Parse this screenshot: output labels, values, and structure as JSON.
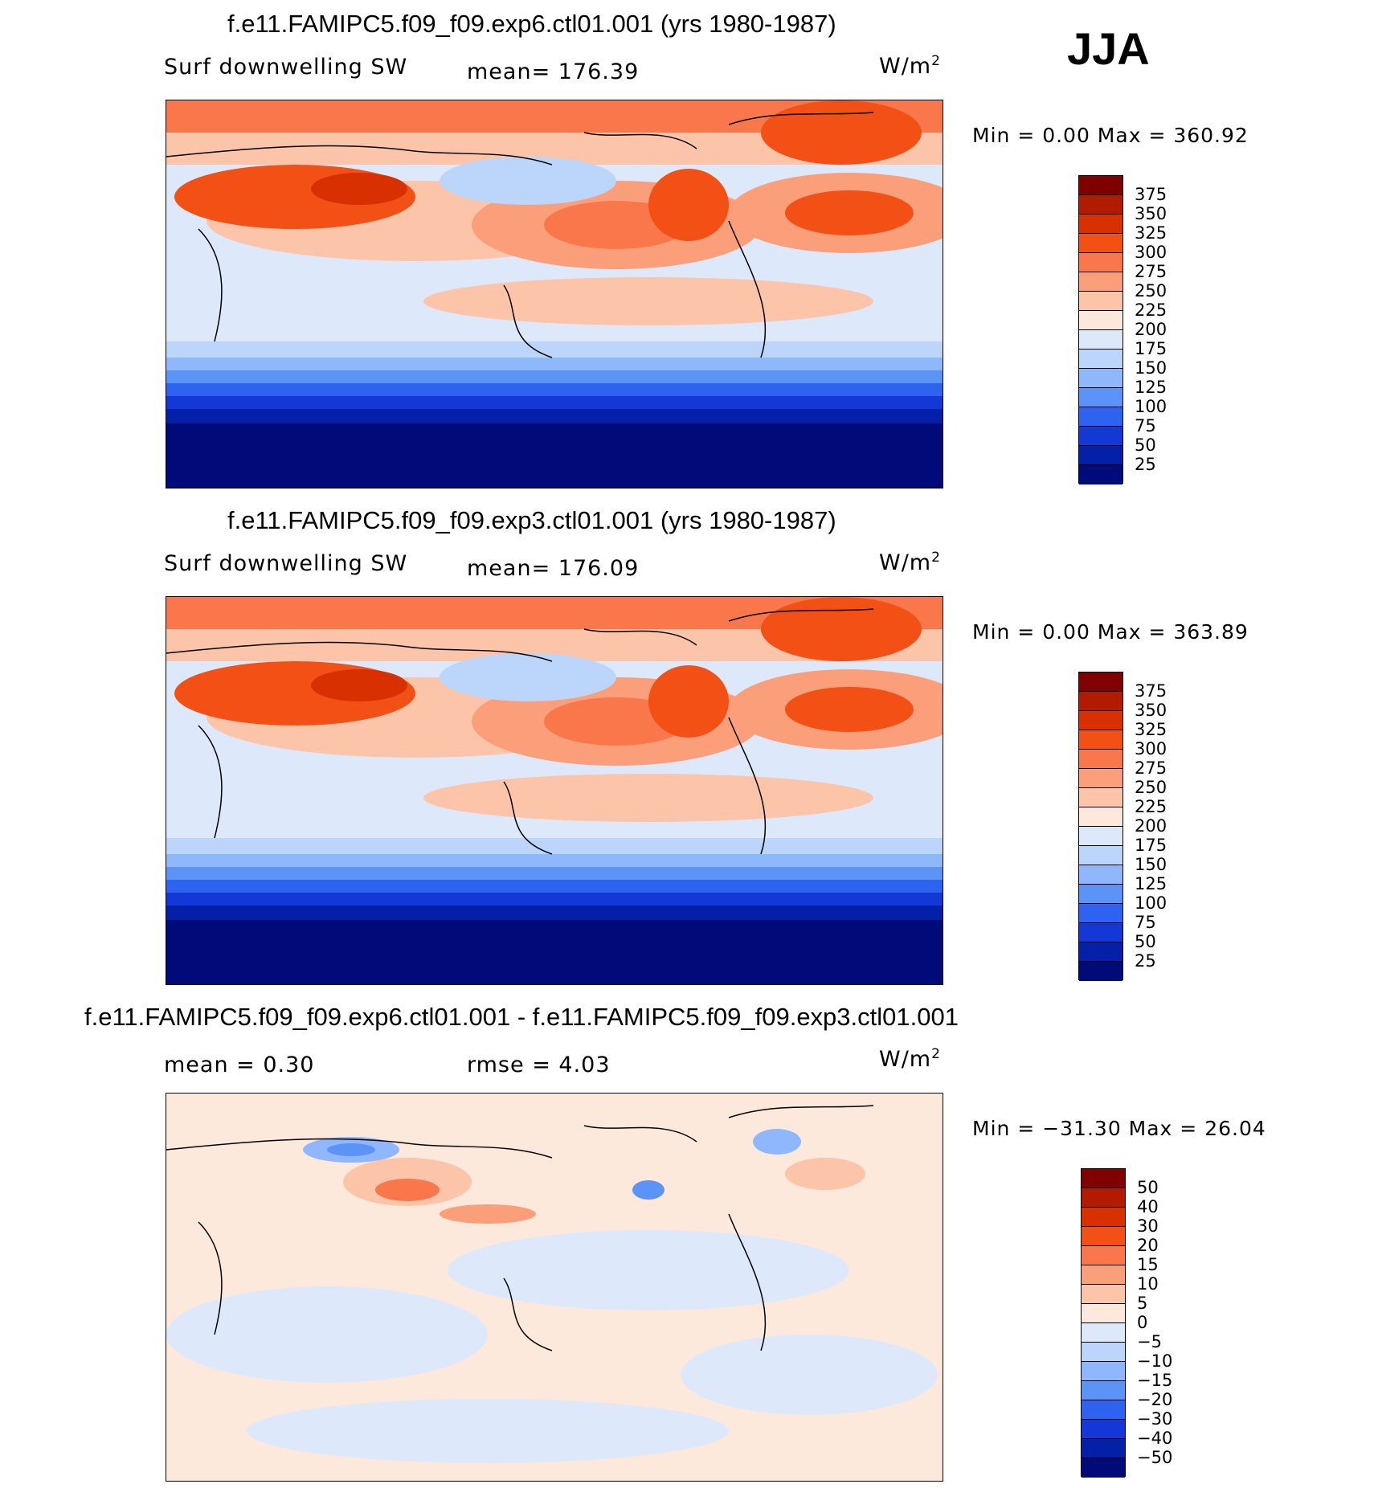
{
  "season": "JJA",
  "unit_label": "W/m",
  "unit_superscript": "2",
  "panels": [
    {
      "title": "f.e11.FAMIPC5.f09_f09.exp6.ctl01.001 (yrs 1980-1987)",
      "left_label": "Surf  downwelling  SW",
      "mean_label": "mean=  176.39",
      "minmax": "Min  =     0.00  Max  =  360.92",
      "legend_levels": [
        "375",
        "350",
        "325",
        "300",
        "275",
        "250",
        "225",
        "200",
        "175",
        "150",
        "125",
        "100",
        "75",
        "50",
        "25"
      ],
      "legend_colors": [
        "#800000",
        "#b31b00",
        "#d93000",
        "#f25015",
        "#f9774a",
        "#fb9e7a",
        "#fcc4a8",
        "#fde9dc",
        "#dde9fb",
        "#bcd6fb",
        "#8eb8fb",
        "#5b93f7",
        "#2d63f0",
        "#1338d6",
        "#0520a8",
        "#000b7a"
      ]
    },
    {
      "title": "f.e11.FAMIPC5.f09_f09.exp3.ctl01.001 (yrs 1980-1987)",
      "left_label": "Surf  downwelling  SW",
      "mean_label": "mean=  176.09",
      "minmax": "Min  =     0.00  Max  =  363.89",
      "legend_levels": [
        "375",
        "350",
        "325",
        "300",
        "275",
        "250",
        "225",
        "200",
        "175",
        "150",
        "125",
        "100",
        "75",
        "50",
        "25"
      ],
      "legend_colors": [
        "#800000",
        "#b31b00",
        "#d93000",
        "#f25015",
        "#f9774a",
        "#fb9e7a",
        "#fcc4a8",
        "#fde9dc",
        "#dde9fb",
        "#bcd6fb",
        "#8eb8fb",
        "#5b93f7",
        "#2d63f0",
        "#1338d6",
        "#0520a8",
        "#000b7a"
      ]
    },
    {
      "title": "f.e11.FAMIPC5.f09_f09.exp6.ctl01.001 - f.e11.FAMIPC5.f09_f09.exp3.ctl01.001",
      "left_label": "mean  =     0.30",
      "mean_label": "rmse  =     4.03",
      "minmax": "Min  = −31.30  Max  =    26.04",
      "legend_levels": [
        "50",
        "40",
        "30",
        "20",
        "15",
        "10",
        "5",
        "0",
        "−5",
        "−10",
        "−15",
        "−20",
        "−30",
        "−40",
        "−50"
      ],
      "legend_colors": [
        "#800000",
        "#b31b00",
        "#d93000",
        "#f25015",
        "#f9774a",
        "#fb9e7a",
        "#fcc4a8",
        "#fde9dc",
        "#dde9fb",
        "#bcd6fb",
        "#8eb8fb",
        "#5b93f7",
        "#2d63f0",
        "#1338d6",
        "#0520a8",
        "#000b7a"
      ]
    }
  ]
}
